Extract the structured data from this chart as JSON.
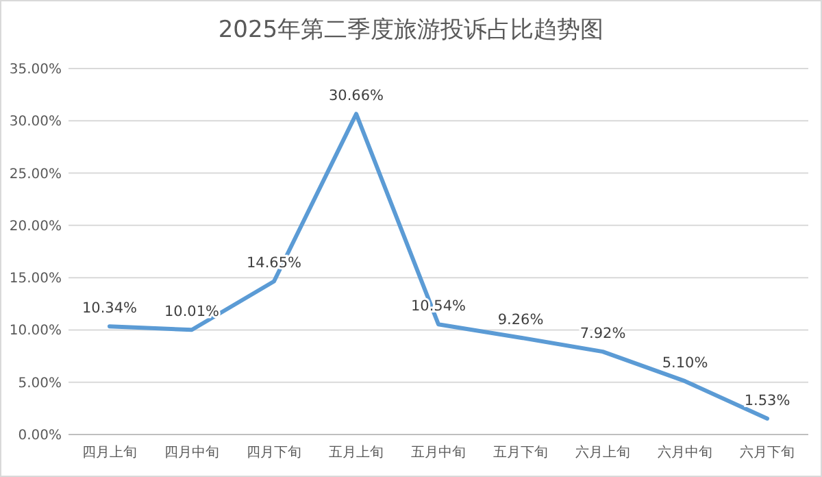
{
  "chart_data": {
    "type": "line",
    "title": "2025年第二季度旅游投诉占比趋势图",
    "categories": [
      "四月上旬",
      "四月中旬",
      "四月下旬",
      "五月上旬",
      "五月中旬",
      "五月下旬",
      "六月上旬",
      "六月中旬",
      "六月下旬"
    ],
    "series": [
      {
        "color": "#5b9bd5",
        "values": [
          10.34,
          10.01,
          14.65,
          30.66,
          10.54,
          9.26,
          7.92,
          5.1,
          1.53
        ],
        "value_labels": [
          "10.34%",
          "10.01%",
          "14.65%",
          "30.66%",
          "10.54%",
          "9.26%",
          "7.92%",
          "5.10%",
          "1.53%"
        ]
      }
    ],
    "ylim": [
      0,
      35
    ],
    "yticks": [
      {
        "value": 0,
        "label": "0.00%"
      },
      {
        "value": 5,
        "label": "5.00%"
      },
      {
        "value": 10,
        "label": "10.00%"
      },
      {
        "value": 15,
        "label": "15.00%"
      },
      {
        "value": 20,
        "label": "20.00%"
      },
      {
        "value": 25,
        "label": "25.00%"
      },
      {
        "value": 30,
        "label": "30.00%"
      },
      {
        "value": 35,
        "label": "35.00%"
      }
    ],
    "grid": "y",
    "marker": "none",
    "line_style": "solid"
  }
}
